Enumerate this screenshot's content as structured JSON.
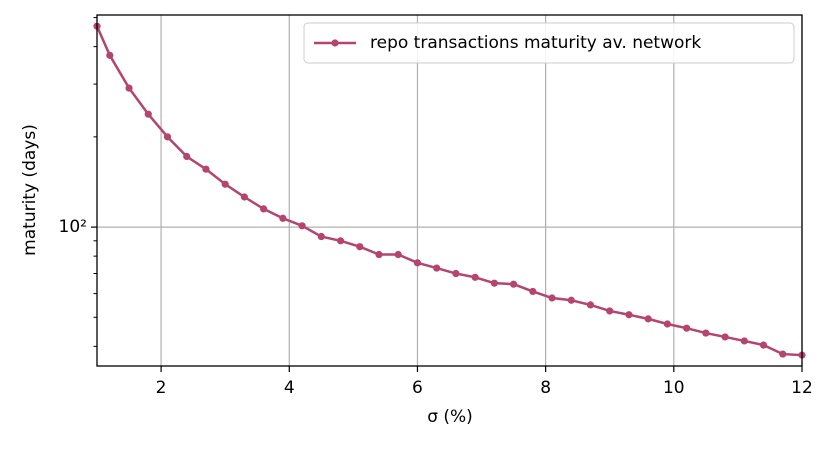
{
  "chart_data": {
    "type": "line",
    "xlabel": "σ (%)",
    "ylabel": "maturity (days)",
    "x": [
      1.0,
      1.2,
      1.5,
      1.8,
      2.1,
      2.4,
      2.7,
      3.0,
      3.3,
      3.6,
      3.9,
      4.2,
      4.5,
      4.8,
      5.1,
      5.4,
      5.7,
      6.0,
      6.3,
      6.6,
      6.9,
      7.2,
      7.5,
      7.8,
      8.1,
      8.4,
      8.7,
      9.0,
      9.3,
      9.6,
      9.9,
      10.2,
      10.5,
      10.8,
      11.1,
      11.4,
      11.7,
      12.0
    ],
    "series": [
      {
        "name": "repo transactions maturity av. network",
        "color": "#b5446e",
        "values": [
          468,
          374,
          291,
          238,
          200,
          172,
          156,
          139,
          126,
          115,
          107,
          101,
          93,
          90,
          86,
          81,
          81,
          76,
          73,
          70,
          68,
          65,
          64.5,
          61,
          58,
          57,
          55,
          52.5,
          51,
          49.4,
          47.5,
          46,
          44.3,
          43,
          41.7,
          40.4,
          37.7,
          37.4
        ]
      }
    ],
    "xlim": [
      1,
      12
    ],
    "xticks": [
      2,
      4,
      6,
      8,
      10,
      12
    ],
    "ylim": [
      34.4,
      510
    ],
    "yticks": [
      {
        "value": 100,
        "label": "10²"
      }
    ],
    "yminorticks": [
      40,
      50,
      60,
      70,
      80,
      90,
      200,
      300,
      400,
      500
    ],
    "ylog": true,
    "grid": true,
    "legend": "upper right"
  }
}
